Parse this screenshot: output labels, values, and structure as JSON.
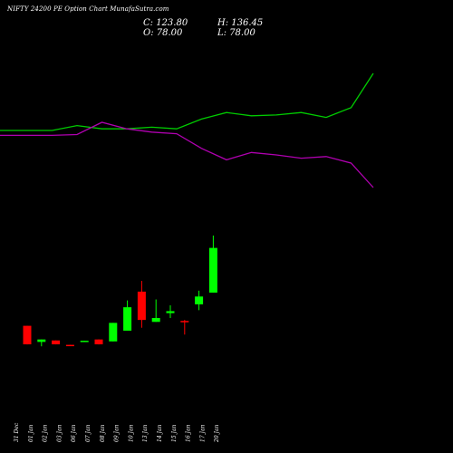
{
  "header": {
    "title": "NIFTY 24200  PE Option  Chart MunafaSutra.com",
    "close_label": "C: 123.80",
    "high_label": "H: 136.45",
    "open_label": "O: 78.00",
    "low_label": "L: 78.00"
  },
  "chart_data": {
    "type": "candlestick",
    "title": "NIFTY 24200  PE Option  Chart MunafaSutra.com",
    "colors": {
      "up": "#00ff00",
      "down": "#ff0000",
      "line_green": "#00cc00",
      "line_magenta": "#b000b0",
      "background": "#000000"
    },
    "dates": [
      "31 Dec",
      "01 Jan",
      "02 Jan",
      "03 Jan",
      "06 Jan",
      "07 Jan",
      "08 Jan",
      "09 Jan",
      "10 Jan",
      "13 Jan",
      "14 Jan",
      "15 Jan",
      "16 Jan",
      "17 Jan",
      "20 Jan"
    ],
    "candles": [
      {
        "date": "31 Dec",
        "open": 44.0,
        "high": 44.0,
        "low": 25.0,
        "close": 25.0
      },
      {
        "date": "01 Jan",
        "open": 27.5,
        "high": 30.0,
        "low": 23.0,
        "close": 30.0
      },
      {
        "date": "02 Jan",
        "open": 29.0,
        "high": 29.0,
        "low": 25.0,
        "close": 25.0
      },
      {
        "date": "03 Jan",
        "open": 24.5,
        "high": 24.5,
        "low": 24.0,
        "close": 24.0
      },
      {
        "date": "06 Jan",
        "open": 28.0,
        "high": 28.7,
        "low": 27.5,
        "close": 28.7
      },
      {
        "date": "07 Jan",
        "open": 30.0,
        "high": 30.0,
        "low": 25.0,
        "close": 25.0
      },
      {
        "date": "08 Jan",
        "open": 28.0,
        "high": 47.0,
        "low": 28.0,
        "close": 47.0
      },
      {
        "date": "09 Jan",
        "open": 39.0,
        "high": 70.0,
        "low": 39.0,
        "close": 63.0
      },
      {
        "date": "10 Jan",
        "open": 79.0,
        "high": 90.0,
        "low": 42.0,
        "close": 50.0
      },
      {
        "date": "13 Jan",
        "open": 48.0,
        "high": 71.0,
        "low": 48.0,
        "close": 52.0
      },
      {
        "date": "14 Jan",
        "open": 57.0,
        "high": 65.0,
        "low": 52.0,
        "close": 59.0
      },
      {
        "date": "15 Jan",
        "open": 49.0,
        "high": 50.0,
        "low": 35.0,
        "close": 48.0
      },
      {
        "date": "16 Jan",
        "open": 66.0,
        "high": 80.0,
        "low": 60.0,
        "close": 74.0
      },
      {
        "date": "17 Jan",
        "open": 78.0,
        "high": 136.45,
        "low": 78.0,
        "close": 123.8
      }
    ],
    "lines": [
      {
        "color": "#00cc00",
        "values": [
          30,
          30,
          33,
          31,
          31,
          32,
          31,
          37,
          41,
          39,
          39.5,
          41,
          38,
          44,
          65
        ]
      },
      {
        "color": "#b000b0",
        "values": [
          27,
          27,
          27.5,
          35,
          31,
          29,
          28,
          19,
          12,
          16.5,
          15,
          13,
          14,
          10,
          -5
        ]
      }
    ]
  }
}
